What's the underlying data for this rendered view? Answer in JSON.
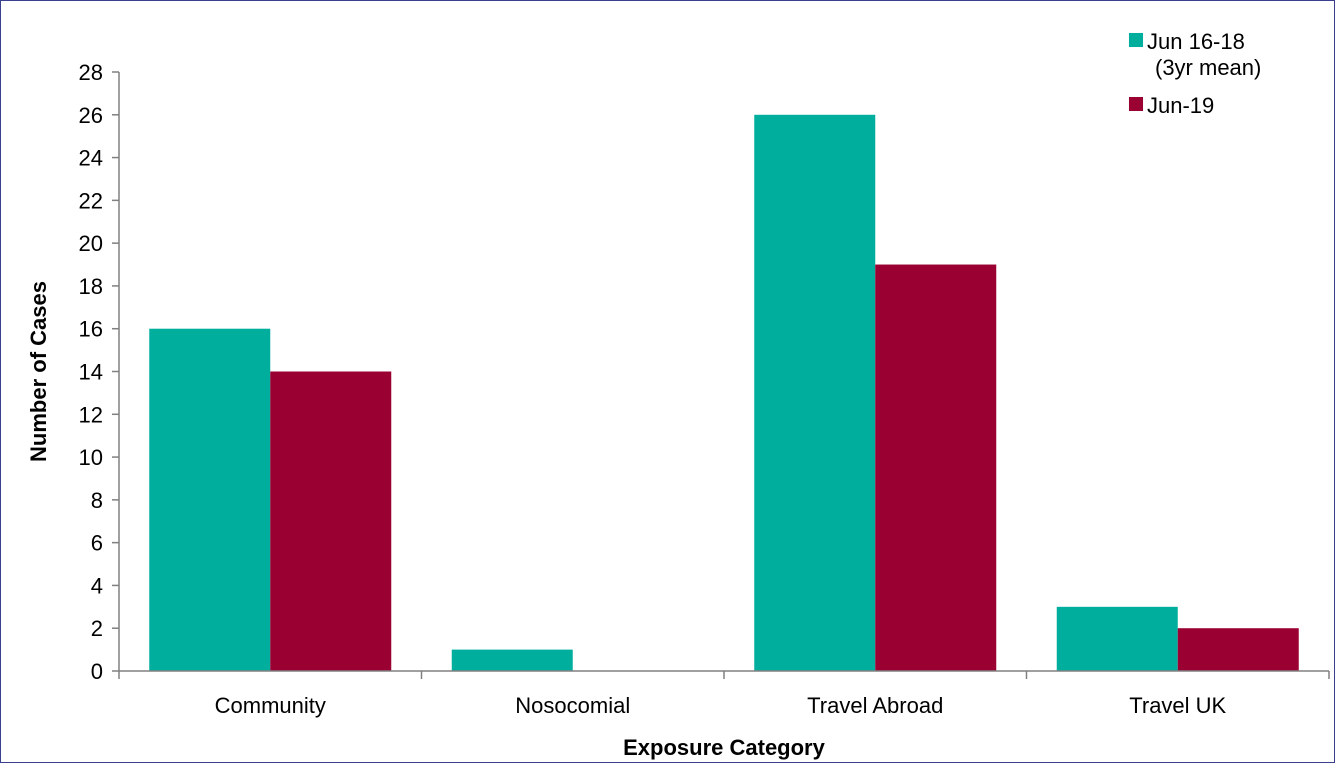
{
  "chart_data": {
    "type": "bar",
    "title": "",
    "xlabel": "Exposure Category",
    "ylabel": "Number of Cases",
    "categories": [
      "Community",
      "Nosocomial",
      "Travel Abroad",
      "Travel UK"
    ],
    "series": [
      {
        "name": "Jun 16-18 (3yr mean)",
        "legend_lines": [
          "Jun 16-18",
          "(3yr mean)"
        ],
        "color": "#00ae9e",
        "values": [
          16,
          1,
          26,
          3
        ]
      },
      {
        "name": "Jun-19",
        "legend_lines": [
          "Jun-19"
        ],
        "color": "#9b0032",
        "values": [
          14,
          0,
          19,
          2
        ]
      }
    ],
    "ylim": [
      0,
      28
    ],
    "yticks": [
      0,
      2,
      4,
      6,
      8,
      10,
      12,
      14,
      16,
      18,
      20,
      22,
      24,
      26,
      28
    ],
    "grid": false,
    "legend_position": "top-right"
  }
}
